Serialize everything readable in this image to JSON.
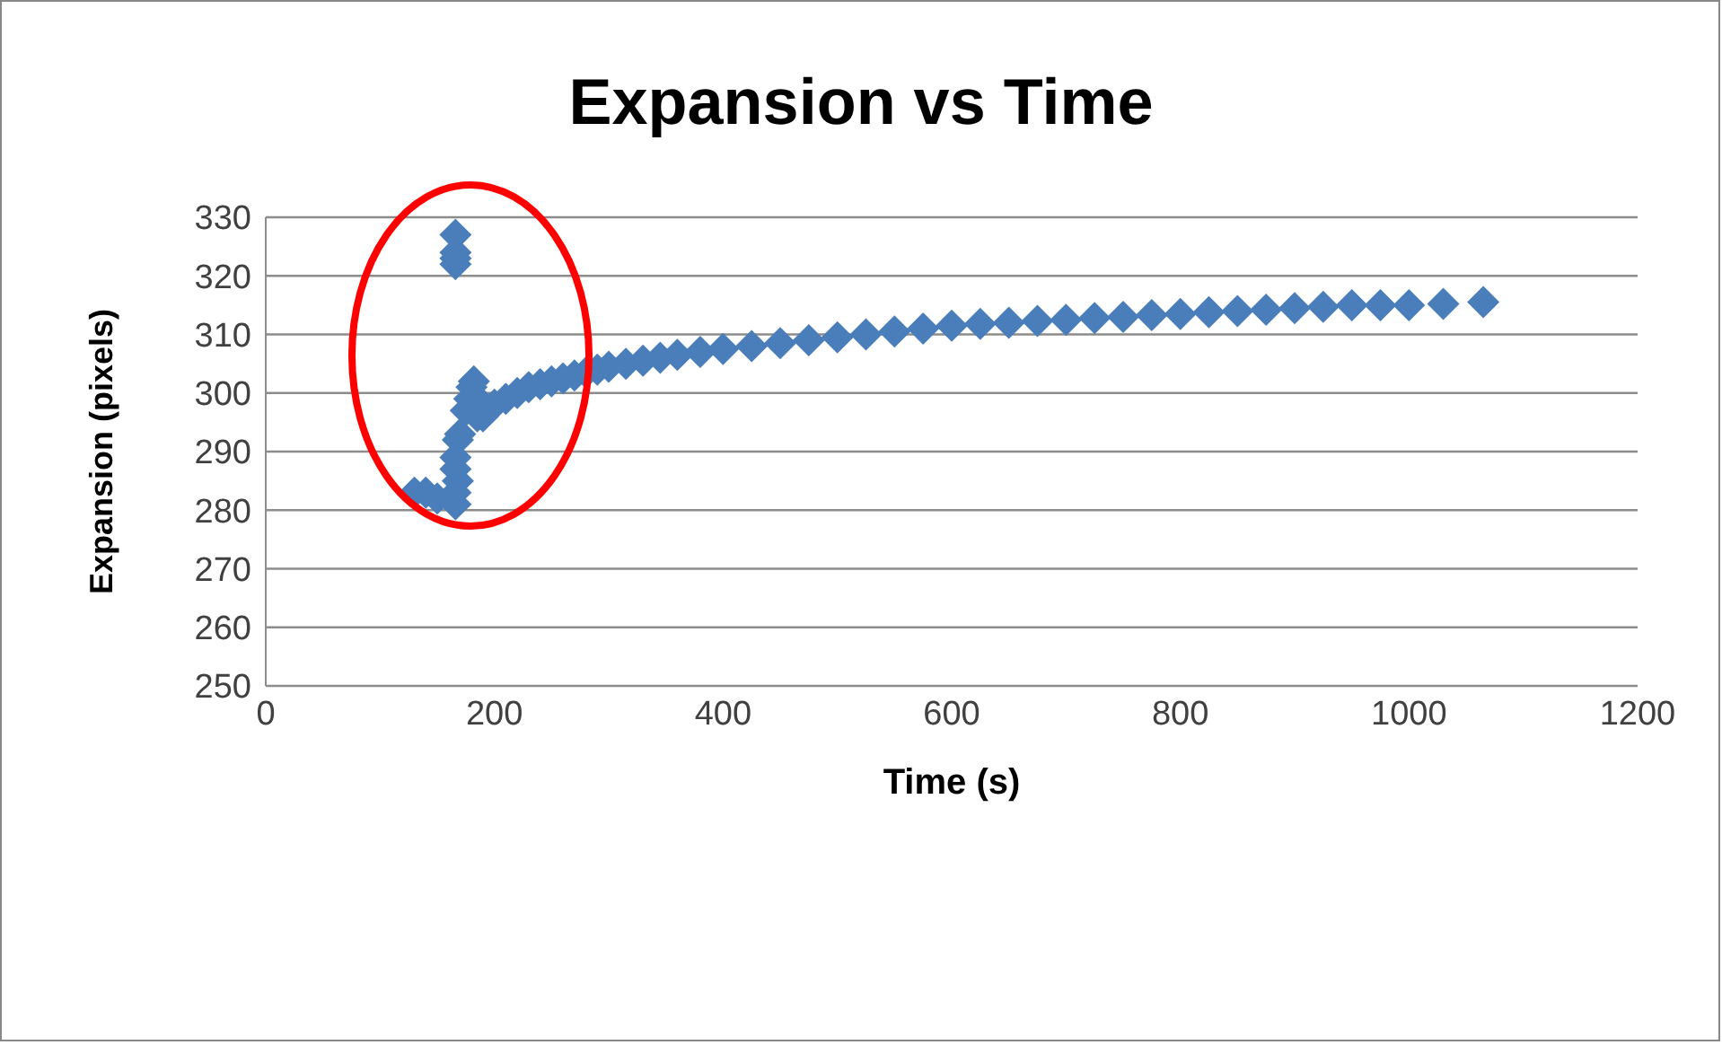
{
  "chart_data": {
    "type": "scatter",
    "title": "Expansion vs Time",
    "xlabel": "Time (s)",
    "ylabel": "Expansion (pixels)",
    "xlim": [
      0,
      1200
    ],
    "xticks": [
      0,
      200,
      400,
      600,
      800,
      1000,
      1200
    ],
    "ylim": [
      250,
      330
    ],
    "yticks": [
      250,
      260,
      270,
      280,
      290,
      300,
      310,
      320,
      330
    ],
    "grid": "y",
    "marker": "diamond",
    "x": [
      130,
      140,
      150,
      166,
      166,
      168,
      166,
      166,
      168,
      170,
      166,
      166,
      166,
      166,
      175,
      178,
      180,
      182,
      185,
      185,
      190,
      200,
      210,
      220,
      230,
      240,
      250,
      260,
      270,
      280,
      290,
      300,
      315,
      330,
      345,
      360,
      380,
      400,
      425,
      450,
      475,
      500,
      525,
      550,
      575,
      600,
      625,
      650,
      675,
      700,
      725,
      750,
      775,
      800,
      825,
      850,
      875,
      900,
      925,
      950,
      975,
      1000,
      1030,
      1065
    ],
    "series": [
      {
        "color": "#4a7ebb",
        "values": [
          283,
          283,
          282,
          281,
          283,
          285,
          287,
          289,
          292,
          293,
          322,
          323,
          324,
          327,
          297,
          299,
          301,
          302,
          299,
          296,
          296,
          298,
          299,
          300,
          301,
          301.5,
          302,
          302.5,
          303,
          303.5,
          304,
          304.5,
          305,
          305.5,
          306,
          306.5,
          307,
          307.5,
          308,
          308.5,
          309,
          309.5,
          310,
          310.5,
          311,
          311.5,
          311.8,
          312,
          312.3,
          312.5,
          312.8,
          313,
          313.3,
          313.5,
          313.8,
          314,
          314.2,
          314.5,
          314.7,
          315,
          315,
          315,
          315.2,
          315.5
        ]
      }
    ]
  }
}
